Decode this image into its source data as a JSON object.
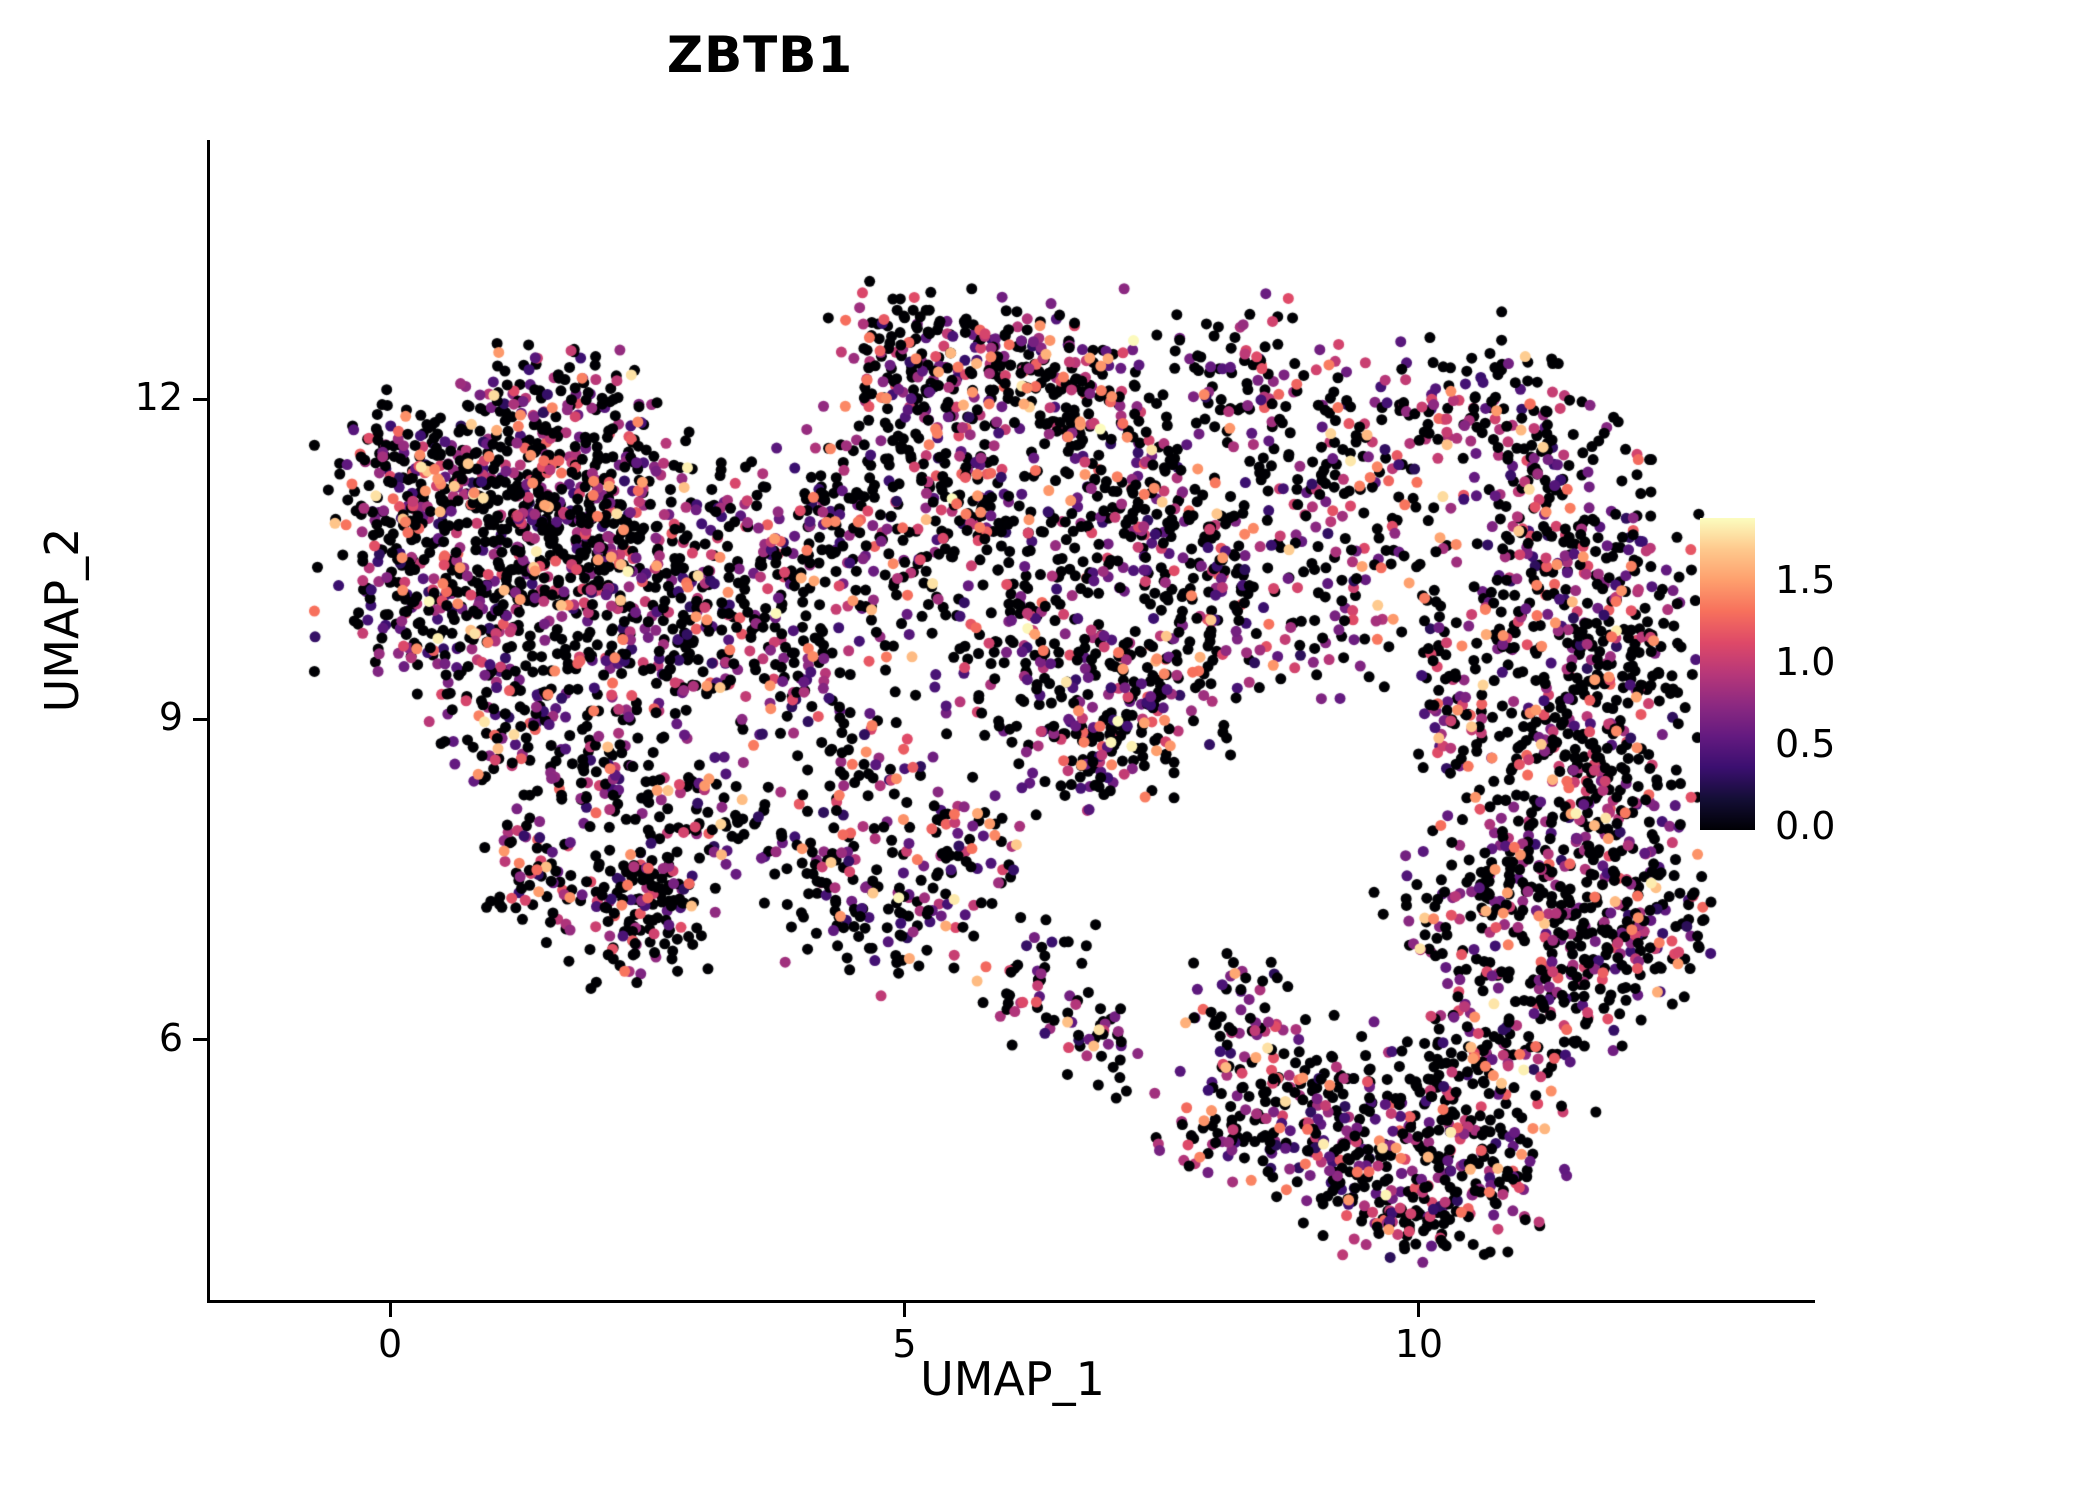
{
  "figure": {
    "title": "ZBTB1",
    "xlabel": "UMAP_1",
    "ylabel": "UMAP_2"
  },
  "chart_data": {
    "type": "scatter",
    "title": "ZBTB1",
    "xlabel": "UMAP_1",
    "ylabel": "UMAP_2",
    "xlim": [
      -1.75,
      13.85
    ],
    "ylim": [
      3.56,
      14.43
    ],
    "grid": false,
    "legend_position": "right",
    "point_radius_px": 5.5,
    "seed": 1337,
    "xticks": [
      {
        "v": 0,
        "label": "0"
      },
      {
        "v": 5,
        "label": "5"
      },
      {
        "v": 10,
        "label": "10"
      }
    ],
    "yticks": [
      {
        "v": 12,
        "label": "12"
      },
      {
        "v": 9,
        "label": "9"
      },
      {
        "v": 6,
        "label": "6"
      }
    ],
    "colorbar": {
      "vmin": 0.0,
      "vmax": 1.9,
      "ticks": [
        {
          "v": 1.5,
          "label": "1.5"
        },
        {
          "v": 1.0,
          "label": "1.0"
        },
        {
          "v": 0.5,
          "label": "0.5"
        },
        {
          "v": 0.0,
          "label": "0.0"
        }
      ],
      "stops": [
        [
          0.0,
          "#000004"
        ],
        [
          0.1,
          "#140e36"
        ],
        [
          0.2,
          "#3b0f70"
        ],
        [
          0.3,
          "#641a80"
        ],
        [
          0.4,
          "#8c2981"
        ],
        [
          0.5,
          "#b73779"
        ],
        [
          0.6,
          "#de4968"
        ],
        [
          0.7,
          "#f7705c"
        ],
        [
          0.8,
          "#fe9f6d"
        ],
        [
          0.9,
          "#fec98d"
        ],
        [
          1.0,
          "#fcfdbf"
        ]
      ]
    },
    "expression_mixture": [
      {
        "p": 0.55,
        "min": 0.0,
        "max": 0.0
      },
      {
        "p": 0.18,
        "min": 0.3,
        "max": 0.75
      },
      {
        "p": 0.15,
        "min": 0.75,
        "max": 1.15
      },
      {
        "p": 0.08,
        "min": 1.15,
        "max": 1.5
      },
      {
        "p": 0.03,
        "min": 1.5,
        "max": 1.9
      }
    ],
    "clusters": [
      [
        0.3,
        10.6,
        0.45,
        0.5,
        220
      ],
      [
        1.2,
        11.2,
        0.55,
        0.45,
        260
      ],
      [
        2.0,
        10.9,
        0.5,
        0.5,
        240
      ],
      [
        1.0,
        9.9,
        0.55,
        0.4,
        200
      ],
      [
        2.3,
        10.0,
        0.45,
        0.4,
        150
      ],
      [
        1.6,
        12.0,
        0.5,
        0.25,
        90
      ],
      [
        0.2,
        11.4,
        0.3,
        0.3,
        80
      ],
      [
        1.3,
        8.9,
        0.45,
        0.3,
        90
      ],
      [
        2.1,
        8.4,
        0.4,
        0.3,
        80
      ],
      [
        1.5,
        7.6,
        0.3,
        0.3,
        70
      ],
      [
        2.6,
        7.4,
        0.3,
        0.28,
        110
      ],
      [
        3.2,
        8.1,
        0.3,
        0.3,
        60
      ],
      [
        3.3,
        10.4,
        0.45,
        0.5,
        130
      ],
      [
        4.2,
        10.9,
        0.4,
        0.45,
        110
      ],
      [
        4.0,
        9.5,
        0.4,
        0.4,
        80
      ],
      [
        4.6,
        8.6,
        0.35,
        0.35,
        50
      ],
      [
        5.2,
        11.8,
        0.45,
        0.45,
        160
      ],
      [
        6.1,
        12.3,
        0.45,
        0.32,
        150
      ],
      [
        6.9,
        11.9,
        0.4,
        0.4,
        120
      ],
      [
        5.7,
        11.0,
        0.5,
        0.32,
        120
      ],
      [
        4.9,
        12.6,
        0.25,
        0.22,
        50
      ],
      [
        6.3,
        9.9,
        0.45,
        0.45,
        140
      ],
      [
        7.2,
        9.3,
        0.45,
        0.4,
        150
      ],
      [
        7.9,
        10.2,
        0.4,
        0.4,
        110
      ],
      [
        6.7,
        8.7,
        0.4,
        0.26,
        90
      ],
      [
        4.3,
        7.6,
        0.3,
        0.38,
        80
      ],
      [
        5.0,
        7.1,
        0.3,
        0.3,
        70
      ],
      [
        5.6,
        7.9,
        0.28,
        0.3,
        60
      ],
      [
        6.2,
        6.6,
        0.3,
        0.3,
        50
      ],
      [
        6.9,
        6.0,
        0.25,
        0.25,
        35
      ],
      [
        8.6,
        10.9,
        0.5,
        0.5,
        90
      ],
      [
        9.4,
        11.6,
        0.45,
        0.4,
        90
      ],
      [
        8.3,
        12.3,
        0.4,
        0.3,
        70
      ],
      [
        10.4,
        11.9,
        0.4,
        0.4,
        90
      ],
      [
        11.2,
        11.3,
        0.4,
        0.45,
        110
      ],
      [
        11.8,
        10.4,
        0.4,
        0.45,
        120
      ],
      [
        11.0,
        10.1,
        0.4,
        0.4,
        100
      ],
      [
        11.9,
        9.3,
        0.4,
        0.4,
        130
      ],
      [
        11.2,
        8.7,
        0.4,
        0.4,
        130
      ],
      [
        11.9,
        8.0,
        0.35,
        0.4,
        130
      ],
      [
        11.1,
        7.5,
        0.4,
        0.4,
        130
      ],
      [
        12.2,
        7.0,
        0.3,
        0.32,
        90
      ],
      [
        11.5,
        6.6,
        0.32,
        0.32,
        100
      ],
      [
        10.4,
        9.1,
        0.32,
        0.55,
        80
      ],
      [
        10.3,
        7.0,
        0.32,
        0.4,
        70
      ],
      [
        10.8,
        5.9,
        0.4,
        0.32,
        110
      ],
      [
        10.0,
        5.3,
        0.45,
        0.4,
        150
      ],
      [
        9.2,
        4.9,
        0.4,
        0.32,
        130
      ],
      [
        10.7,
        4.7,
        0.32,
        0.3,
        90
      ],
      [
        9.9,
        4.3,
        0.32,
        0.22,
        70
      ],
      [
        8.6,
        5.6,
        0.4,
        0.32,
        90
      ],
      [
        8.0,
        5.1,
        0.26,
        0.26,
        40
      ],
      [
        8.3,
        6.3,
        0.26,
        0.26,
        40
      ],
      [
        9.0,
        9.8,
        0.45,
        0.45,
        50
      ],
      [
        9.8,
        10.5,
        0.32,
        0.32,
        40
      ],
      [
        7.6,
        11.1,
        0.4,
        0.4,
        60
      ],
      [
        3.0,
        9.3,
        0.4,
        0.35,
        70
      ],
      [
        5.0,
        10.2,
        0.4,
        0.5,
        70
      ],
      [
        7.0,
        10.8,
        0.35,
        0.35,
        60
      ],
      [
        2.4,
        6.9,
        0.3,
        0.25,
        40
      ]
    ]
  }
}
